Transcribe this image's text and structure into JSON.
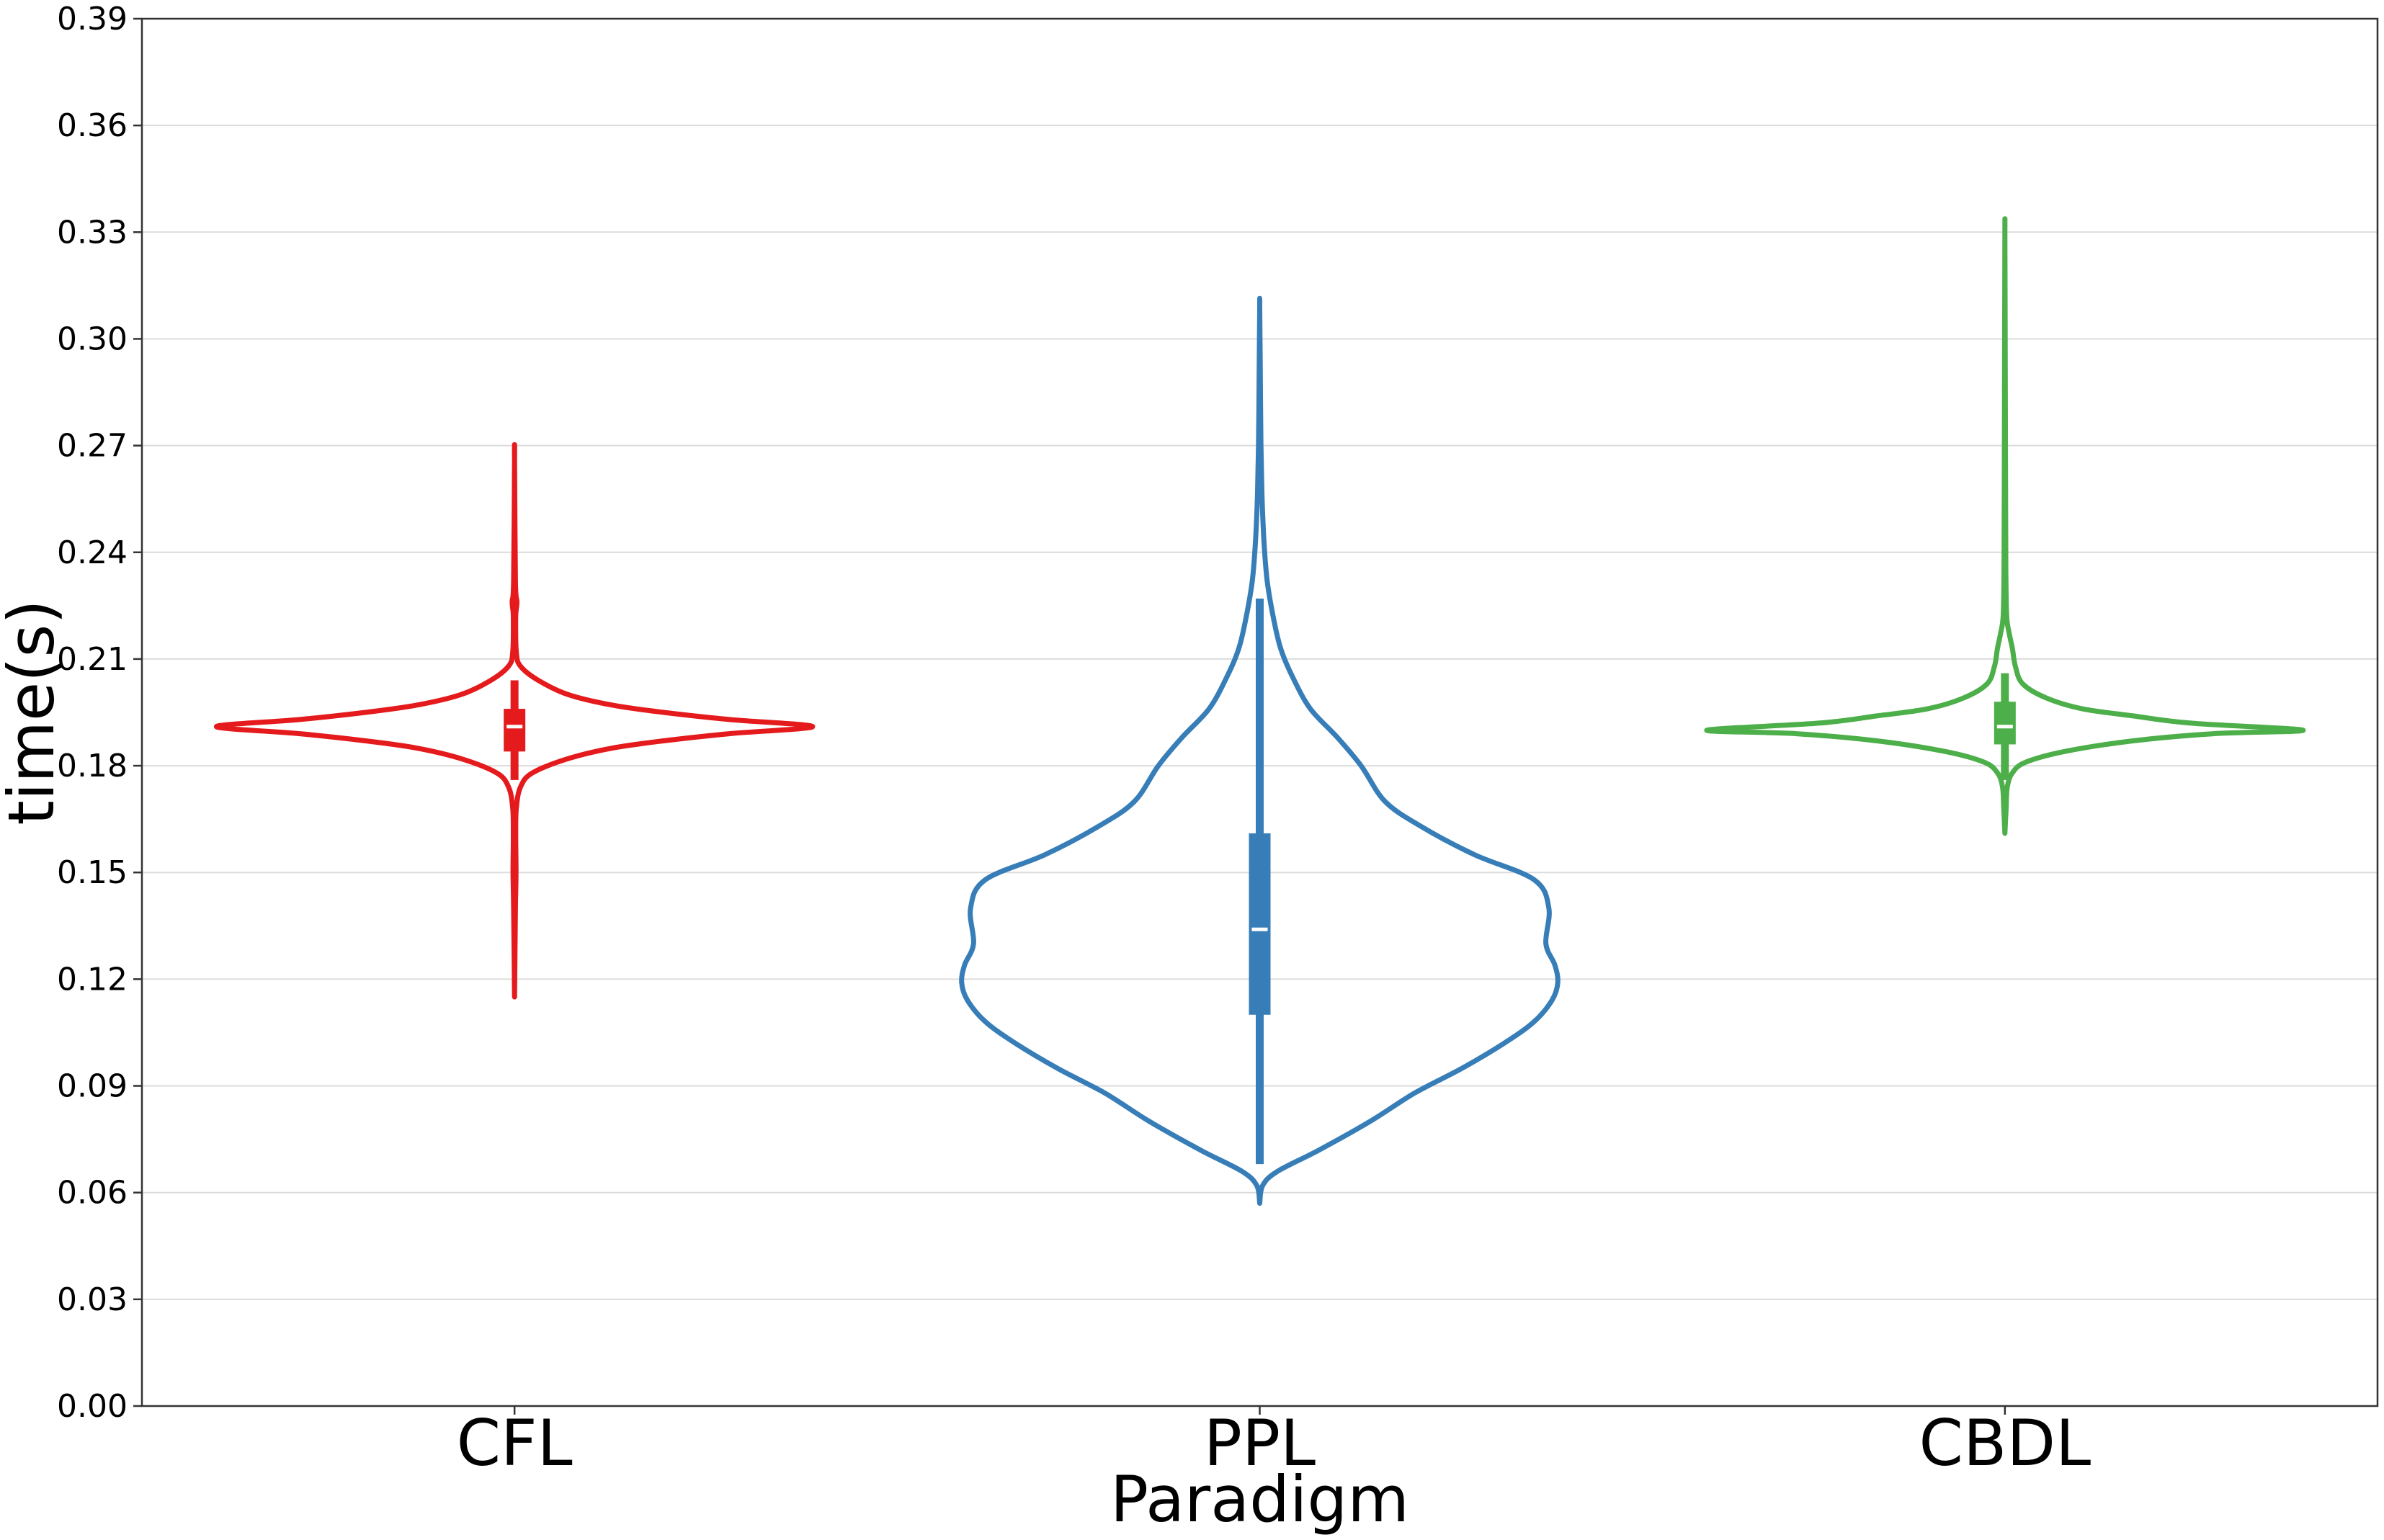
{
  "chart_data": {
    "type": "violin",
    "xlabel": "Paradigm",
    "ylabel": "time(s)",
    "ylim": [
      0,
      0.39
    ],
    "yticks": [
      "0.00",
      "0.03",
      "0.06",
      "0.09",
      "0.12",
      "0.15",
      "0.18",
      "0.21",
      "0.24",
      "0.27",
      "0.30",
      "0.33",
      "0.36",
      "0.39"
    ],
    "grid": "horizontal",
    "categories": [
      "CFL",
      "PPL",
      "CBDL"
    ],
    "series": [
      {
        "category": "CFL",
        "color": "#e41a1c",
        "min": 0.115,
        "max": 0.266,
        "q1": 0.184,
        "median": 0.191,
        "q3": 0.196,
        "whisker_low": 0.176,
        "whisker_high": 0.204,
        "density": [
          [
            0.115,
            0.0
          ],
          [
            0.14,
            0.003
          ],
          [
            0.15,
            0.005
          ],
          [
            0.16,
            0.004
          ],
          [
            0.168,
            0.006
          ],
          [
            0.174,
            0.02
          ],
          [
            0.178,
            0.06
          ],
          [
            0.182,
            0.18
          ],
          [
            0.185,
            0.33
          ],
          [
            0.187,
            0.5
          ],
          [
            0.189,
            0.72
          ],
          [
            0.191,
            1.0
          ],
          [
            0.193,
            0.72
          ],
          [
            0.195,
            0.5
          ],
          [
            0.197,
            0.33
          ],
          [
            0.2,
            0.18
          ],
          [
            0.204,
            0.08
          ],
          [
            0.208,
            0.02
          ],
          [
            0.212,
            0.006
          ],
          [
            0.222,
            0.004
          ],
          [
            0.226,
            0.008
          ],
          [
            0.232,
            0.003
          ],
          [
            0.266,
            0.0
          ]
        ]
      },
      {
        "category": "PPL",
        "color": "#377eb8",
        "min": 0.057,
        "max": 0.309,
        "q1": 0.11,
        "median": 0.134,
        "q3": 0.161,
        "whisker_low": 0.068,
        "whisker_high": 0.227,
        "density": [
          [
            0.057,
            0.0
          ],
          [
            0.062,
            0.01
          ],
          [
            0.066,
            0.06
          ],
          [
            0.072,
            0.2
          ],
          [
            0.08,
            0.37
          ],
          [
            0.088,
            0.52
          ],
          [
            0.095,
            0.68
          ],
          [
            0.102,
            0.82
          ],
          [
            0.108,
            0.92
          ],
          [
            0.114,
            0.98
          ],
          [
            0.119,
            1.0
          ],
          [
            0.124,
            0.99
          ],
          [
            0.13,
            0.96
          ],
          [
            0.14,
            0.97
          ],
          [
            0.148,
            0.92
          ],
          [
            0.155,
            0.72
          ],
          [
            0.163,
            0.54
          ],
          [
            0.17,
            0.42
          ],
          [
            0.18,
            0.34
          ],
          [
            0.188,
            0.26
          ],
          [
            0.196,
            0.17
          ],
          [
            0.205,
            0.11
          ],
          [
            0.213,
            0.07
          ],
          [
            0.222,
            0.045
          ],
          [
            0.232,
            0.025
          ],
          [
            0.242,
            0.015
          ],
          [
            0.255,
            0.008
          ],
          [
            0.27,
            0.004
          ],
          [
            0.29,
            0.002
          ],
          [
            0.309,
            0.0
          ]
        ]
      },
      {
        "category": "CBDL",
        "color": "#4daf4a",
        "min": 0.161,
        "max": 0.33,
        "q1": 0.186,
        "median": 0.191,
        "q3": 0.198,
        "whisker_low": 0.176,
        "whisker_high": 0.206,
        "density": [
          [
            0.161,
            0.0
          ],
          [
            0.168,
            0.004
          ],
          [
            0.174,
            0.008
          ],
          [
            0.178,
            0.025
          ],
          [
            0.181,
            0.07
          ],
          [
            0.184,
            0.2
          ],
          [
            0.187,
            0.43
          ],
          [
            0.189,
            0.7
          ],
          [
            0.19,
            1.0
          ],
          [
            0.192,
            0.62
          ],
          [
            0.194,
            0.43
          ],
          [
            0.196,
            0.26
          ],
          [
            0.199,
            0.14
          ],
          [
            0.203,
            0.06
          ],
          [
            0.208,
            0.035
          ],
          [
            0.213,
            0.025
          ],
          [
            0.217,
            0.015
          ],
          [
            0.222,
            0.006
          ],
          [
            0.235,
            0.003
          ],
          [
            0.26,
            0.002
          ],
          [
            0.3,
            0.001
          ],
          [
            0.33,
            0.0
          ]
        ]
      }
    ]
  }
}
